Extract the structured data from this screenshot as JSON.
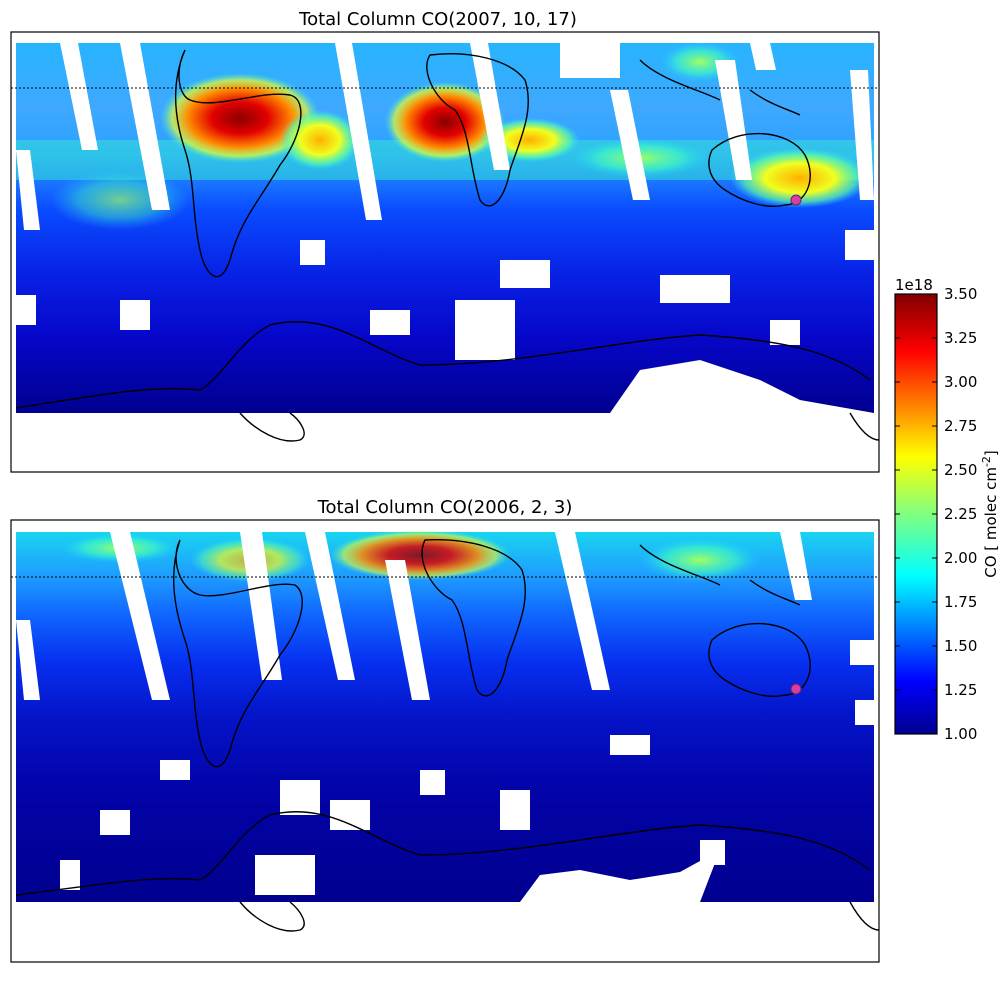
{
  "chart_data": [
    {
      "type": "heatmap",
      "title": "Total Column CO(2007, 10, 17)",
      "map": "southern-hemisphere satellite swath map",
      "fields": [
        {
          "region": "South America (Amazon)",
          "level": 3.4
        },
        {
          "region": "Central Africa",
          "level": 3.3
        },
        {
          "region": "Northern Australia",
          "level": 2.7
        },
        {
          "region": "Southern mid-latitudes",
          "level": 1.4
        },
        {
          "region": "Antarctic coast",
          "level": 1.05
        }
      ],
      "marker": {
        "label": "",
        "color": "#d43fa8",
        "location": "south-east Australia"
      },
      "reference_line": "dotted parallel near top"
    },
    {
      "type": "heatmap",
      "title": "Total Column CO(2006, 2, 3)",
      "map": "southern-hemisphere satellite swath map",
      "fields": [
        {
          "region": "Central Africa",
          "level": 2.9
        },
        {
          "region": "Northern tropics",
          "level": 2.1
        },
        {
          "region": "Southern mid-latitudes",
          "level": 1.2
        },
        {
          "region": "Antarctic coast",
          "level": 1.0
        }
      ],
      "marker": {
        "label": "",
        "color": "#d43fa8",
        "location": "south-east Australia"
      },
      "reference_line": "dotted parallel near top"
    }
  ],
  "colorbar": {
    "label": "CO [ molec cm",
    "label_sup": "-2",
    "label_end": "]",
    "multiplier": "1e18",
    "ticks": [
      "1.00",
      "1.25",
      "1.50",
      "1.75",
      "2.00",
      "2.25",
      "2.50",
      "2.75",
      "3.00",
      "3.25",
      "3.50"
    ],
    "vmin": 1.0,
    "vmax": 3.5,
    "colormap": "jet"
  },
  "colors": {
    "deep_blue": "#00008f",
    "blue": "#0000ff",
    "sky": "#00bfff",
    "cyan": "#00ffff",
    "yellow": "#ffff00",
    "orange": "#ff8000",
    "red": "#ff0000",
    "dark_red": "#800000",
    "marker": "#d43fa8"
  }
}
